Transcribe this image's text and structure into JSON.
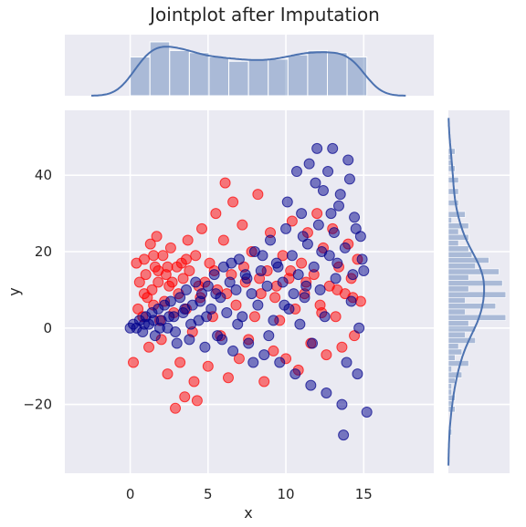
{
  "chart_data": {
    "type": "scatter",
    "title": "Jointplot after Imputation",
    "xlabel": "x",
    "ylabel": "y",
    "xlim": [
      -4.2,
      19.5
    ],
    "ylim": [
      -38,
      57
    ],
    "xticks": [
      0,
      5,
      10,
      15
    ],
    "xtick_labels": [
      "0",
      "5",
      "10",
      "15"
    ],
    "yticks": [
      -20,
      0,
      20,
      40
    ],
    "ytick_labels": [
      "−20",
      "0",
      "20",
      "40"
    ],
    "grid": true,
    "legend": "none",
    "colors": {
      "background": "#eaeaf2",
      "grid": "#ffffff",
      "imputed": "#ff0000",
      "observed": "#00008b",
      "marginal": "#4c72b0"
    },
    "series": [
      {
        "color": "#ff0000",
        "points": [
          [
            0.2,
            -9
          ],
          [
            0.4,
            17
          ],
          [
            0.6,
            12
          ],
          [
            0.5,
            5
          ],
          [
            0.8,
            3
          ],
          [
            0.9,
            18
          ],
          [
            1.0,
            14
          ],
          [
            1.1,
            8
          ],
          [
            1.2,
            -5
          ],
          [
            1.3,
            22
          ],
          [
            1.4,
            10
          ],
          [
            1.5,
            6
          ],
          [
            1.6,
            16
          ],
          [
            1.7,
            24
          ],
          [
            1.8,
            12
          ],
          [
            1.9,
            2
          ],
          [
            2.0,
            -3
          ],
          [
            2.1,
            19
          ],
          [
            2.2,
            7
          ],
          [
            2.3,
            14
          ],
          [
            2.4,
            -12
          ],
          [
            2.5,
            11
          ],
          [
            2.6,
            21
          ],
          [
            2.8,
            4
          ],
          [
            2.9,
            -21
          ],
          [
            3.0,
            16
          ],
          [
            3.1,
            9
          ],
          [
            3.2,
            -9
          ],
          [
            3.4,
            13
          ],
          [
            3.5,
            -18
          ],
          [
            3.6,
            5
          ],
          [
            3.7,
            23
          ],
          [
            3.8,
            15
          ],
          [
            4.0,
            -1
          ],
          [
            4.1,
            -14
          ],
          [
            4.2,
            19
          ],
          [
            4.3,
            -19
          ],
          [
            4.5,
            8
          ],
          [
            4.6,
            26
          ],
          [
            4.8,
            12
          ],
          [
            5.0,
            -10
          ],
          [
            5.1,
            17
          ],
          [
            5.3,
            3
          ],
          [
            5.5,
            30
          ],
          [
            5.6,
            10
          ],
          [
            5.8,
            -2
          ],
          [
            6.0,
            23
          ],
          [
            6.1,
            38
          ],
          [
            6.3,
            -13
          ],
          [
            6.5,
            14
          ],
          [
            6.6,
            33
          ],
          [
            6.8,
            6
          ],
          [
            7.0,
            -8
          ],
          [
            7.2,
            27
          ],
          [
            7.4,
            12
          ],
          [
            7.6,
            -3
          ],
          [
            7.8,
            20
          ],
          [
            8.0,
            3
          ],
          [
            8.2,
            35
          ],
          [
            8.4,
            9
          ],
          [
            8.6,
            -14
          ],
          [
            8.8,
            15
          ],
          [
            9.0,
            25
          ],
          [
            9.2,
            -6
          ],
          [
            9.4,
            11
          ],
          [
            9.6,
            2
          ],
          [
            9.8,
            19
          ],
          [
            10.0,
            -8
          ],
          [
            10.2,
            13
          ],
          [
            10.4,
            28
          ],
          [
            10.6,
            5
          ],
          [
            10.8,
            -11
          ],
          [
            11.0,
            17
          ],
          [
            11.2,
            9
          ],
          [
            11.4,
            25
          ],
          [
            11.6,
            -4
          ],
          [
            11.8,
            14
          ],
          [
            12.0,
            30
          ],
          [
            12.2,
            6
          ],
          [
            12.4,
            21
          ],
          [
            12.6,
            -7
          ],
          [
            12.8,
            11
          ],
          [
            13.0,
            26
          ],
          [
            13.2,
            3
          ],
          [
            13.4,
            16
          ],
          [
            13.6,
            -5
          ],
          [
            13.8,
            9
          ],
          [
            14.0,
            22
          ],
          [
            14.2,
            13
          ],
          [
            14.4,
            -2
          ],
          [
            14.6,
            18
          ],
          [
            14.8,
            7
          ],
          [
            1.5,
            19
          ],
          [
            2.4,
            16
          ],
          [
            3.3,
            17
          ],
          [
            4.4,
            11
          ],
          [
            5.4,
            15
          ],
          [
            6.2,
            9
          ],
          [
            7.3,
            16
          ],
          [
            8.3,
            13
          ],
          [
            9.3,
            8
          ],
          [
            10.3,
            15
          ],
          [
            11.3,
            12
          ],
          [
            12.3,
            4
          ],
          [
            13.3,
            10
          ],
          [
            14.3,
            8
          ],
          [
            0.9,
            9
          ],
          [
            1.8,
            15
          ],
          [
            2.7,
            12
          ],
          [
            3.6,
            18
          ]
        ]
      },
      {
        "color": "#00008b",
        "points": [
          [
            0.0,
            0
          ],
          [
            0.2,
            1
          ],
          [
            0.4,
            0
          ],
          [
            0.6,
            2
          ],
          [
            0.8,
            -1
          ],
          [
            1.0,
            3
          ],
          [
            1.2,
            1
          ],
          [
            1.4,
            4
          ],
          [
            1.6,
            -2
          ],
          [
            1.8,
            5
          ],
          [
            2.0,
            2
          ],
          [
            2.2,
            6
          ],
          [
            2.4,
            0
          ],
          [
            2.6,
            7
          ],
          [
            2.8,
            3
          ],
          [
            3.0,
            -4
          ],
          [
            3.2,
            8
          ],
          [
            3.4,
            4
          ],
          [
            3.6,
            10
          ],
          [
            3.8,
            -3
          ],
          [
            4.0,
            6
          ],
          [
            4.2,
            12
          ],
          [
            4.4,
            2
          ],
          [
            4.6,
            9
          ],
          [
            4.8,
            -5
          ],
          [
            5.0,
            11
          ],
          [
            5.2,
            5
          ],
          [
            5.4,
            14
          ],
          [
            5.6,
            -2
          ],
          [
            5.8,
            8
          ],
          [
            6.0,
            16
          ],
          [
            6.2,
            4
          ],
          [
            6.4,
            12
          ],
          [
            6.6,
            -6
          ],
          [
            6.8,
            10
          ],
          [
            7.0,
            18
          ],
          [
            7.2,
            3
          ],
          [
            7.4,
            14
          ],
          [
            7.6,
            -4
          ],
          [
            7.8,
            9
          ],
          [
            8.0,
            20
          ],
          [
            8.2,
            6
          ],
          [
            8.4,
            15
          ],
          [
            8.6,
            -7
          ],
          [
            8.8,
            11
          ],
          [
            9.0,
            23
          ],
          [
            9.2,
            2
          ],
          [
            9.4,
            17
          ],
          [
            9.6,
            -9
          ],
          [
            9.8,
            12
          ],
          [
            10.0,
            26
          ],
          [
            10.2,
            5
          ],
          [
            10.4,
            19
          ],
          [
            10.6,
            -12
          ],
          [
            10.8,
            14
          ],
          [
            11.0,
            30
          ],
          [
            11.2,
            8
          ],
          [
            11.4,
            22
          ],
          [
            11.6,
            -15
          ],
          [
            11.8,
            16
          ],
          [
            12.0,
            47
          ],
          [
            12.2,
            10
          ],
          [
            12.4,
            36
          ],
          [
            12.6,
            -17
          ],
          [
            12.8,
            19
          ],
          [
            13.0,
            47
          ],
          [
            13.2,
            13
          ],
          [
            13.4,
            32
          ],
          [
            13.6,
            -20
          ],
          [
            13.8,
            21
          ],
          [
            14.0,
            44
          ],
          [
            14.2,
            7
          ],
          [
            14.4,
            29
          ],
          [
            14.6,
            -12
          ],
          [
            14.8,
            24
          ],
          [
            15.0,
            15
          ],
          [
            15.2,
            -22
          ],
          [
            13.7,
            -28
          ],
          [
            10.7,
            41
          ],
          [
            11.5,
            43
          ],
          [
            12.9,
            30
          ],
          [
            13.5,
            35
          ],
          [
            14.1,
            39
          ],
          [
            14.9,
            18
          ],
          [
            9.5,
            16
          ],
          [
            8.5,
            19
          ],
          [
            7.5,
            13
          ],
          [
            6.5,
            17
          ],
          [
            5.5,
            9
          ],
          [
            4.5,
            7
          ],
          [
            3.5,
            5
          ],
          [
            2.5,
            3
          ],
          [
            1.5,
            2
          ],
          [
            11.1,
            24
          ],
          [
            12.1,
            27
          ],
          [
            13.1,
            25
          ],
          [
            14.5,
            26
          ],
          [
            10.1,
            33
          ],
          [
            11.9,
            38
          ],
          [
            12.7,
            41
          ],
          [
            9.9,
            6
          ],
          [
            10.9,
            1
          ],
          [
            11.7,
            -4
          ],
          [
            12.5,
            3
          ],
          [
            13.9,
            -9
          ],
          [
            14.7,
            0
          ],
          [
            8.9,
            -2
          ],
          [
            7.9,
            -9
          ],
          [
            6.9,
            1
          ],
          [
            5.9,
            -3
          ],
          [
            4.9,
            3
          ],
          [
            3.9,
            1
          ],
          [
            2.9,
            -1
          ],
          [
            1.9,
            0
          ],
          [
            0.9,
            1
          ],
          [
            12.3,
            20
          ],
          [
            13.3,
            17
          ],
          [
            14.3,
            14
          ],
          [
            11.3,
            11
          ],
          [
            10.5,
            9
          ]
        ]
      }
    ]
  }
}
